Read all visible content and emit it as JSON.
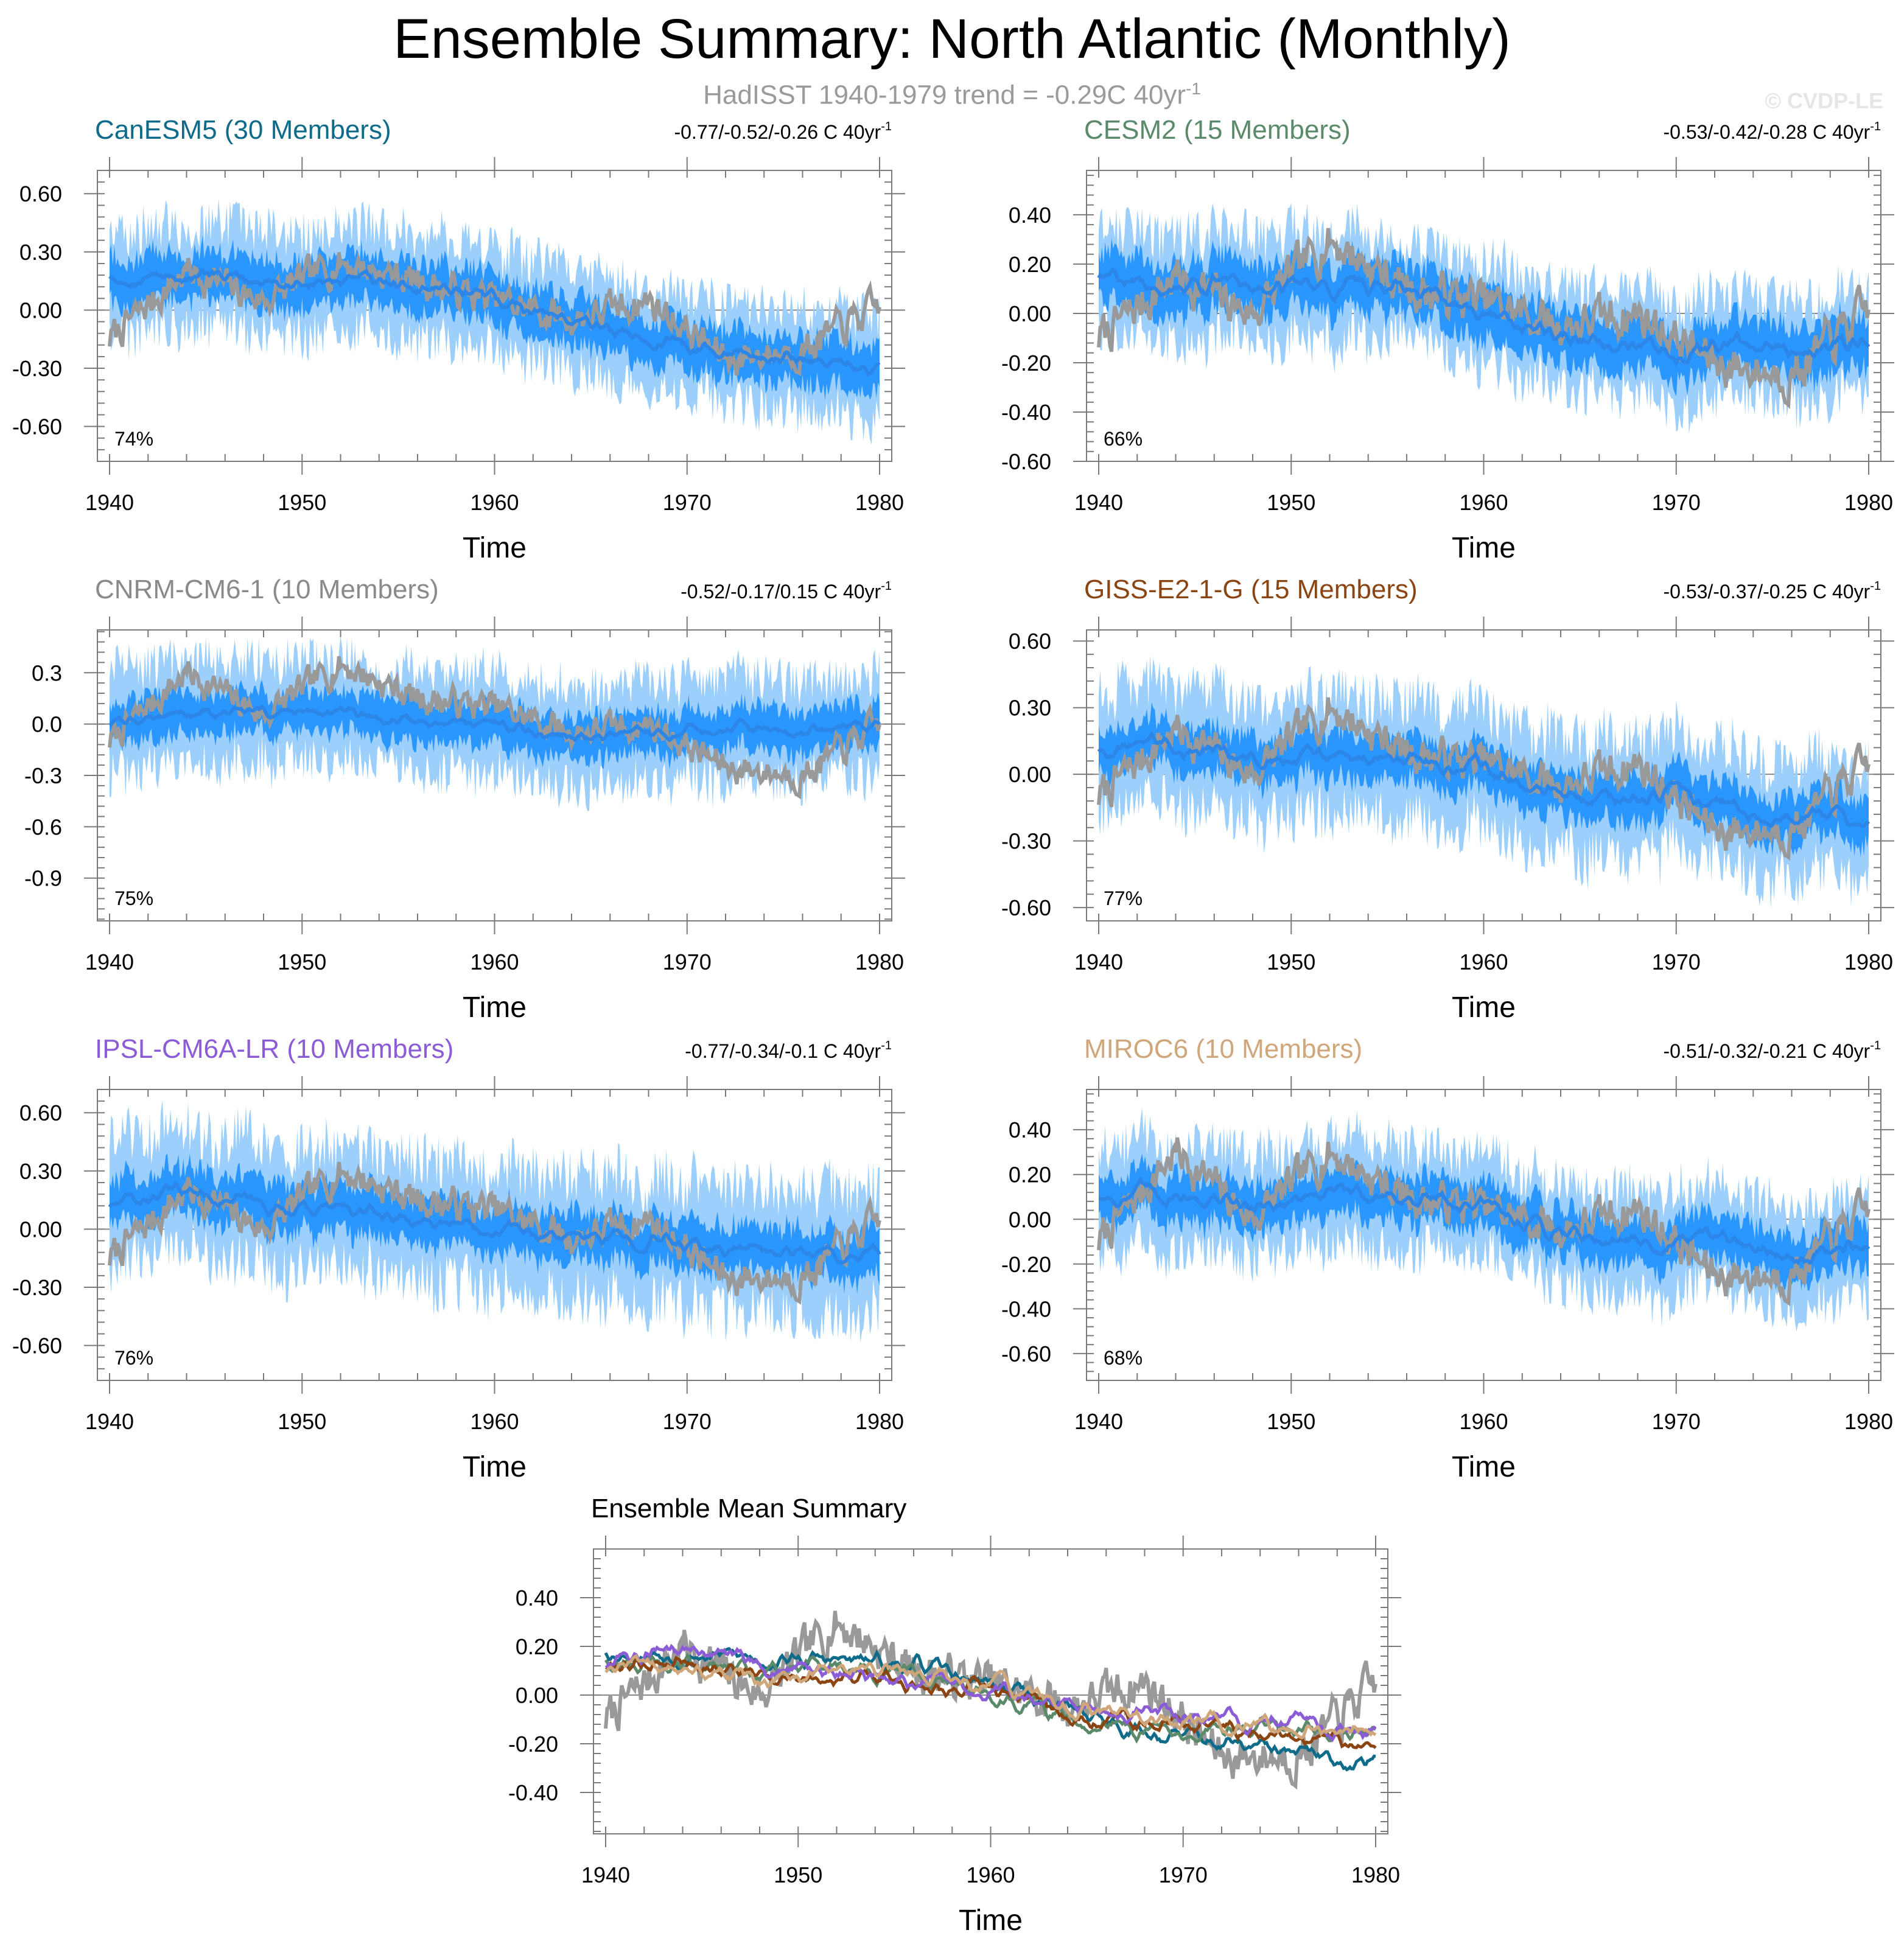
{
  "title": "Ensemble Summary: North Atlantic (Monthly)",
  "subtitle": "HadISST 1940-1979 trend = -0.29C 40yr",
  "subtitle_sup": "-1",
  "copyright": "© CVDP-LE",
  "colors": {
    "observations": "#999999",
    "ensemble_mean": "#1e8fff",
    "spread_inner": "#1e8fff",
    "spread_outer": "#9ccffc"
  },
  "chart_data": [
    {
      "type": "line",
      "title": "CanESM5 (30 Members)",
      "title_color": "#0e6b8a",
      "trend_text": "-0.77/-0.52/-0.26 C 40yr",
      "trend_sup": "-1",
      "pct_label": "74%",
      "xlabel": "Time",
      "xlim": [
        1940,
        1980
      ],
      "xticks": [
        "1940",
        "1950",
        "1960",
        "1970",
        "1980"
      ],
      "ylim": [
        -0.78,
        0.72
      ],
      "yticks": [
        0.6,
        0.3,
        0.0,
        -0.3,
        -0.6
      ],
      "ytick_labels": [
        "0.60",
        "0.30",
        "0.00",
        "-0.30",
        "-0.60"
      ],
      "series": [
        {
          "role": "observations",
          "x": [
            1940,
            1944,
            1948,
            1952,
            1956,
            1960,
            1964,
            1968,
            1972,
            1976,
            1980
          ],
          "values": [
            -0.15,
            0.2,
            0.05,
            0.25,
            0.15,
            0.05,
            -0.05,
            0.05,
            -0.25,
            -0.2,
            0.02
          ]
        },
        {
          "role": "ensemble_mean",
          "x": [
            1940,
            1944,
            1948,
            1952,
            1956,
            1960,
            1964,
            1968,
            1972,
            1976,
            1980
          ],
          "values": [
            0.18,
            0.17,
            0.15,
            0.14,
            0.12,
            0.05,
            -0.05,
            -0.15,
            -0.2,
            -0.25,
            -0.28
          ]
        }
      ],
      "spread_inner": 0.12,
      "spread_outer": 0.25
    },
    {
      "type": "line",
      "title": "CESM2 (15 Members)",
      "title_color": "#5a8a6a",
      "trend_text": "-0.53/-0.42/-0.28 C 40yr",
      "trend_sup": "-1",
      "pct_label": "66%",
      "xlabel": "Time",
      "xlim": [
        1940,
        1980
      ],
      "xticks": [
        "1940",
        "1950",
        "1960",
        "1970",
        "1980"
      ],
      "ylim": [
        -0.6,
        0.58
      ],
      "yticks": [
        0.4,
        0.2,
        0.0,
        -0.2,
        -0.4,
        -0.6
      ],
      "ytick_labels": [
        "0.40",
        "0.20",
        "0.00",
        "-0.20",
        "-0.40",
        "-0.60"
      ],
      "series": [
        {
          "role": "observations",
          "x": [
            1940,
            1944,
            1948,
            1952,
            1956,
            1960,
            1964,
            1968,
            1972,
            1976,
            1980
          ],
          "values": [
            -0.1,
            0.15,
            0.0,
            0.3,
            0.1,
            0.05,
            -0.05,
            0.0,
            -0.2,
            -0.25,
            0.02
          ]
        },
        {
          "role": "ensemble_mean",
          "x": [
            1940,
            1944,
            1948,
            1952,
            1956,
            1960,
            1964,
            1968,
            1972,
            1976,
            1980
          ],
          "values": [
            0.15,
            0.12,
            0.1,
            0.12,
            0.1,
            0.0,
            -0.08,
            -0.15,
            -0.15,
            -0.15,
            -0.13
          ]
        }
      ],
      "spread_inner": 0.1,
      "spread_outer": 0.2
    },
    {
      "type": "line",
      "title": "CNRM-CM6-1 (10 Members)",
      "title_color": "#8a8a8a",
      "trend_text": "-0.52/-0.17/0.15 C 40yr",
      "trend_sup": "-1",
      "pct_label": "75%",
      "xlabel": "Time",
      "xlim": [
        1940,
        1980
      ],
      "xticks": [
        "1940",
        "1950",
        "1960",
        "1970",
        "1980"
      ],
      "ylim": [
        -1.15,
        0.55
      ],
      "yticks": [
        0.3,
        0.0,
        -0.3,
        -0.6,
        -0.9
      ],
      "ytick_labels": [
        "0.3",
        "0.0",
        "-0.3",
        "-0.6",
        "-0.9"
      ],
      "series": [
        {
          "role": "observations",
          "x": [
            1940,
            1944,
            1948,
            1952,
            1956,
            1960,
            1964,
            1968,
            1972,
            1976,
            1980
          ],
          "values": [
            -0.1,
            0.3,
            0.05,
            0.35,
            0.15,
            0.1,
            -0.05,
            0.0,
            -0.25,
            -0.3,
            0.0
          ]
        },
        {
          "role": "ensemble_mean",
          "x": [
            1940,
            1944,
            1948,
            1952,
            1956,
            1960,
            1964,
            1968,
            1972,
            1976,
            1980
          ],
          "values": [
            0.0,
            0.08,
            0.05,
            0.05,
            0.0,
            0.0,
            -0.08,
            -0.08,
            -0.05,
            -0.05,
            0.0
          ]
        }
      ],
      "spread_inner": 0.12,
      "spread_outer": 0.28
    },
    {
      "type": "line",
      "title": "GISS-E2-1-G (15 Members)",
      "title_color": "#8b4513",
      "trend_text": "-0.53/-0.37/-0.25 C 40yr",
      "trend_sup": "-1",
      "pct_label": "77%",
      "xlabel": "Time",
      "xlim": [
        1940,
        1980
      ],
      "xticks": [
        "1940",
        "1950",
        "1960",
        "1970",
        "1980"
      ],
      "ylim": [
        -0.66,
        0.65
      ],
      "yticks": [
        0.6,
        0.3,
        0.0,
        -0.3,
        -0.6
      ],
      "ytick_labels": [
        "0.60",
        "0.30",
        "0.00",
        "-0.30",
        "-0.60"
      ],
      "series": [
        {
          "role": "observations",
          "x": [
            1940,
            1944,
            1948,
            1952,
            1956,
            1960,
            1964,
            1968,
            1972,
            1976,
            1980
          ],
          "values": [
            -0.1,
            0.2,
            0.0,
            0.3,
            0.1,
            0.05,
            -0.05,
            0.05,
            -0.25,
            -0.25,
            0.05
          ]
        },
        {
          "role": "ensemble_mean",
          "x": [
            1940,
            1944,
            1948,
            1952,
            1956,
            1960,
            1964,
            1968,
            1972,
            1976,
            1980
          ],
          "values": [
            0.12,
            0.15,
            0.08,
            0.08,
            0.05,
            0.02,
            -0.08,
            -0.1,
            -0.12,
            -0.18,
            -0.22
          ]
        }
      ],
      "spread_inner": 0.1,
      "spread_outer": 0.25
    },
    {
      "type": "line",
      "title": "IPSL-CM6A-LR (10 Members)",
      "title_color": "#8b5cd6",
      "trend_text": "-0.77/-0.34/-0.1 C 40yr",
      "trend_sup": "-1",
      "pct_label": "76%",
      "xlabel": "Time",
      "xlim": [
        1940,
        1980
      ],
      "xticks": [
        "1940",
        "1950",
        "1960",
        "1970",
        "1980"
      ],
      "ylim": [
        -0.78,
        0.72
      ],
      "yticks": [
        0.6,
        0.3,
        0.0,
        -0.3,
        -0.6
      ],
      "ytick_labels": [
        "0.60",
        "0.30",
        "0.00",
        "-0.30",
        "-0.60"
      ],
      "series": [
        {
          "role": "observations",
          "x": [
            1940,
            1944,
            1948,
            1952,
            1956,
            1960,
            1964,
            1968,
            1972,
            1976,
            1980
          ],
          "values": [
            -0.15,
            0.2,
            0.0,
            0.3,
            0.15,
            0.1,
            -0.05,
            0.05,
            -0.25,
            -0.25,
            0.05
          ]
        },
        {
          "role": "ensemble_mean",
          "x": [
            1940,
            1944,
            1948,
            1952,
            1956,
            1960,
            1964,
            1968,
            1972,
            1976,
            1980
          ],
          "values": [
            0.12,
            0.2,
            0.12,
            0.1,
            0.05,
            0.02,
            -0.05,
            -0.05,
            -0.1,
            -0.12,
            -0.15
          ]
        }
      ],
      "spread_inner": 0.12,
      "spread_outer": 0.3
    },
    {
      "type": "line",
      "title": "MIROC6 (10 Members)",
      "title_color": "#cfa77a",
      "trend_text": "-0.51/-0.32/-0.21 C 40yr",
      "trend_sup": "-1",
      "pct_label": "68%",
      "xlabel": "Time",
      "xlim": [
        1940,
        1980
      ],
      "xticks": [
        "1940",
        "1950",
        "1960",
        "1970",
        "1980"
      ],
      "ylim": [
        -0.72,
        0.58
      ],
      "yticks": [
        0.4,
        0.2,
        0.0,
        -0.2,
        -0.4,
        -0.6
      ],
      "ytick_labels": [
        "0.40",
        "0.20",
        "0.00",
        "-0.20",
        "-0.40",
        "-0.60"
      ],
      "series": [
        {
          "role": "observations",
          "x": [
            1940,
            1944,
            1948,
            1952,
            1956,
            1960,
            1964,
            1968,
            1972,
            1976,
            1980
          ],
          "values": [
            -0.1,
            0.3,
            0.0,
            0.3,
            0.1,
            0.05,
            -0.05,
            0.05,
            -0.25,
            -0.25,
            0.05
          ]
        },
        {
          "role": "ensemble_mean",
          "x": [
            1940,
            1944,
            1948,
            1952,
            1956,
            1960,
            1964,
            1968,
            1972,
            1976,
            1980
          ],
          "values": [
            0.1,
            0.12,
            0.05,
            0.12,
            0.1,
            0.05,
            -0.05,
            -0.1,
            -0.1,
            -0.15,
            -0.12
          ]
        }
      ],
      "spread_inner": 0.1,
      "spread_outer": 0.22
    },
    {
      "type": "line",
      "title": "Ensemble Mean Summary",
      "title_color": "#000000",
      "xlabel": "Time",
      "xlim": [
        1940,
        1980
      ],
      "xticks": [
        "1940",
        "1950",
        "1960",
        "1970",
        "1980"
      ],
      "ylim": [
        -0.57,
        0.6
      ],
      "yticks": [
        0.4,
        0.2,
        0.0,
        -0.2,
        -0.4
      ],
      "ytick_labels": [
        "0.40",
        "0.20",
        "0.00",
        "-0.20",
        "-0.40"
      ],
      "series": [
        {
          "role": "observations",
          "color": "#999999",
          "x": [
            1940,
            1944,
            1948,
            1952,
            1956,
            1960,
            1964,
            1968,
            1972,
            1976,
            1980
          ],
          "values": [
            -0.1,
            0.2,
            0.0,
            0.3,
            0.1,
            0.05,
            -0.05,
            0.05,
            -0.25,
            -0.25,
            0.05
          ]
        },
        {
          "role": "model",
          "color": "#0e6b8a",
          "x": [
            1940,
            1944,
            1948,
            1952,
            1956,
            1960,
            1964,
            1968,
            1972,
            1976,
            1980
          ],
          "values": [
            0.18,
            0.17,
            0.15,
            0.14,
            0.12,
            0.05,
            -0.05,
            -0.15,
            -0.2,
            -0.25,
            -0.28
          ]
        },
        {
          "role": "model",
          "color": "#5a8a6a",
          "x": [
            1940,
            1944,
            1948,
            1952,
            1956,
            1960,
            1964,
            1968,
            1972,
            1976,
            1980
          ],
          "values": [
            0.15,
            0.12,
            0.1,
            0.12,
            0.1,
            0.0,
            -0.08,
            -0.15,
            -0.15,
            -0.15,
            -0.13
          ]
        },
        {
          "role": "model",
          "color": "#8b4513",
          "x": [
            1940,
            1944,
            1948,
            1952,
            1956,
            1960,
            1964,
            1968,
            1972,
            1976,
            1980
          ],
          "values": [
            0.12,
            0.15,
            0.08,
            0.08,
            0.05,
            0.02,
            -0.08,
            -0.1,
            -0.12,
            -0.18,
            -0.22
          ]
        },
        {
          "role": "model",
          "color": "#8b5cd6",
          "x": [
            1940,
            1944,
            1948,
            1952,
            1956,
            1960,
            1964,
            1968,
            1972,
            1976,
            1980
          ],
          "values": [
            0.12,
            0.2,
            0.12,
            0.1,
            0.05,
            0.02,
            -0.05,
            -0.05,
            -0.1,
            -0.12,
            -0.15
          ]
        },
        {
          "role": "model",
          "color": "#cfa77a",
          "x": [
            1940,
            1944,
            1948,
            1952,
            1956,
            1960,
            1964,
            1968,
            1972,
            1976,
            1980
          ],
          "values": [
            0.1,
            0.12,
            0.05,
            0.12,
            0.1,
            0.05,
            -0.05,
            -0.1,
            -0.1,
            -0.15,
            -0.12
          ]
        }
      ]
    }
  ]
}
